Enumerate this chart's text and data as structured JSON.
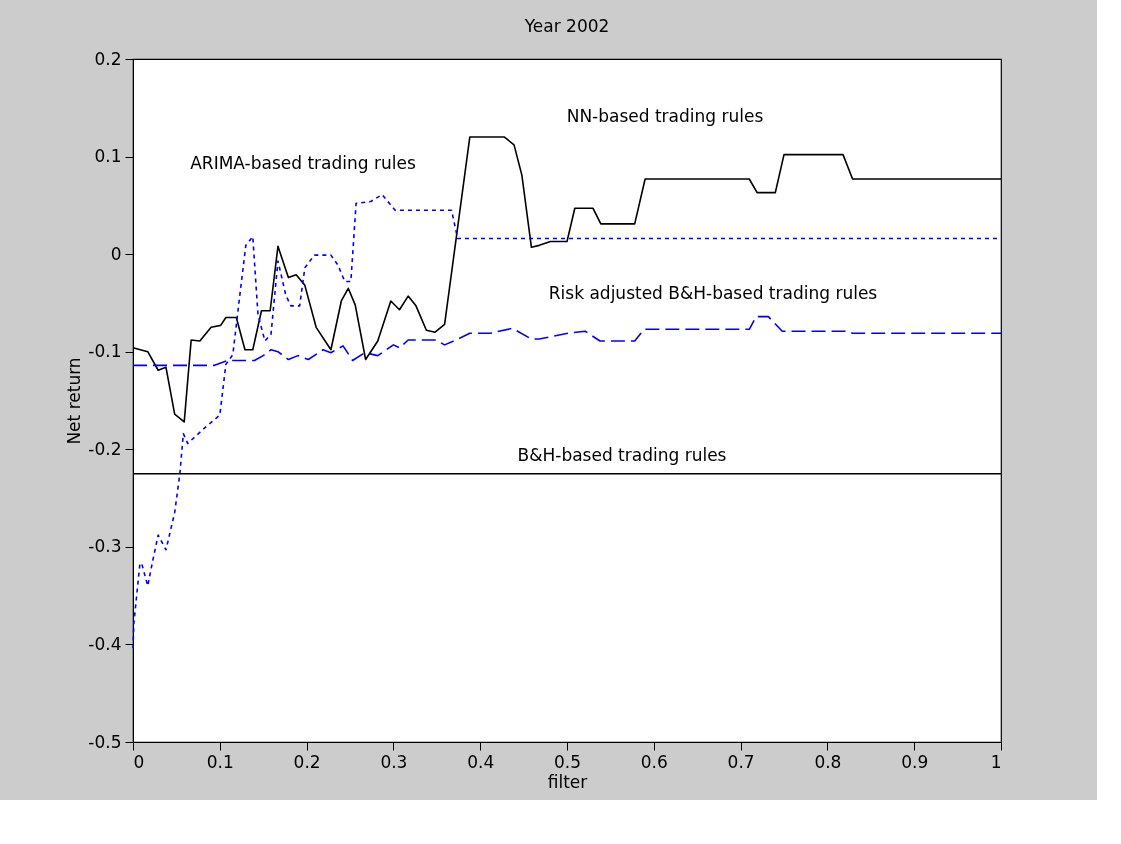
{
  "chart_data": {
    "type": "line",
    "title": "Year 2002",
    "xlabel": "filter",
    "ylabel": "Net return",
    "xlim": [
      0,
      1
    ],
    "xticks": [
      0,
      0.1,
      0.2,
      0.3,
      0.4,
      0.5,
      0.6,
      0.7,
      0.8,
      0.9,
      1
    ],
    "ylim": [
      -0.5,
      0.2
    ],
    "yticks": [
      -0.5,
      -0.4,
      -0.3,
      -0.2,
      -0.1,
      0,
      0.1,
      0.2
    ],
    "grid": false,
    "series": [
      {
        "name": "NN-based trading rules",
        "color": "#000000",
        "line_style": "solid",
        "x": [
          0,
          0.017,
          0.029,
          0.038,
          0.048,
          0.059,
          0.067,
          0.077,
          0.09,
          0.101,
          0.107,
          0.119,
          0.129,
          0.138,
          0.148,
          0.158,
          0.167,
          0.179,
          0.188,
          0.198,
          0.211,
          0.228,
          0.24,
          0.248,
          0.256,
          0.268,
          0.282,
          0.297,
          0.307,
          0.317,
          0.326,
          0.338,
          0.348,
          0.359,
          0.388,
          0.428,
          0.439,
          0.448,
          0.459,
          0.468,
          0.481,
          0.5,
          0.509,
          0.53,
          0.539,
          0.578,
          0.59,
          0.71,
          0.719,
          0.74,
          0.75,
          0.818,
          0.829,
          1
        ],
        "values": [
          -0.096,
          -0.1,
          -0.119,
          -0.116,
          -0.164,
          -0.172,
          -0.088,
          -0.089,
          -0.075,
          -0.073,
          -0.065,
          -0.065,
          -0.098,
          -0.098,
          -0.058,
          -0.058,
          0.008,
          -0.024,
          -0.021,
          -0.032,
          -0.075,
          -0.098,
          -0.048,
          -0.035,
          -0.052,
          -0.108,
          -0.089,
          -0.048,
          -0.057,
          -0.043,
          -0.053,
          -0.078,
          -0.08,
          -0.072,
          0.12,
          0.12,
          0.112,
          0.081,
          0.007,
          0.009,
          0.013,
          0.013,
          0.047,
          0.047,
          0.031,
          0.031,
          0.077,
          0.077,
          0.063,
          0.063,
          0.102,
          0.102,
          0.077,
          0.077
        ]
      },
      {
        "name": "ARIMA-based trading rules",
        "color": "#0000ff",
        "line_style": "dotted",
        "x": [
          0,
          0.001,
          0.008,
          0.01,
          0.017,
          0.023,
          0.029,
          0.038,
          0.048,
          0.054,
          0.058,
          0.063,
          0.084,
          0.1,
          0.107,
          0.115,
          0.124,
          0.13,
          0.138,
          0.144,
          0.152,
          0.159,
          0.167,
          0.176,
          0.182,
          0.192,
          0.198,
          0.209,
          0.228,
          0.236,
          0.244,
          0.251,
          0.257,
          0.274,
          0.287,
          0.302,
          0.367,
          0.374,
          1
        ],
        "values": [
          -0.404,
          -0.378,
          -0.317,
          -0.317,
          -0.34,
          -0.313,
          -0.288,
          -0.303,
          -0.265,
          -0.225,
          -0.184,
          -0.194,
          -0.177,
          -0.165,
          -0.113,
          -0.103,
          -0.035,
          0.009,
          0.018,
          -0.062,
          -0.089,
          -0.082,
          -0.007,
          -0.042,
          -0.053,
          -0.053,
          -0.014,
          -0.001,
          -0.001,
          -0.011,
          -0.028,
          -0.028,
          0.052,
          0.054,
          0.061,
          0.045,
          0.045,
          0.016,
          0.016
        ]
      },
      {
        "name": "Risk adjusted B&H-based trading rules",
        "color": "#0000ff",
        "line_style": "dashed",
        "x": [
          0,
          0.094,
          0.109,
          0.14,
          0.15,
          0.159,
          0.167,
          0.179,
          0.19,
          0.202,
          0.219,
          0.228,
          0.242,
          0.253,
          0.267,
          0.282,
          0.3,
          0.307,
          0.317,
          0.349,
          0.359,
          0.372,
          0.388,
          0.412,
          0.437,
          0.459,
          0.468,
          0.501,
          0.521,
          0.538,
          0.578,
          0.589,
          0.71,
          0.718,
          0.732,
          0.748,
          0.823,
          0.829,
          1
        ],
        "values": [
          -0.114,
          -0.114,
          -0.109,
          -0.109,
          -0.104,
          -0.098,
          -0.1,
          -0.108,
          -0.104,
          -0.108,
          -0.098,
          -0.101,
          -0.094,
          -0.109,
          -0.101,
          -0.104,
          -0.093,
          -0.096,
          -0.088,
          -0.088,
          -0.093,
          -0.088,
          -0.081,
          -0.081,
          -0.076,
          -0.087,
          -0.087,
          -0.081,
          -0.079,
          -0.089,
          -0.089,
          -0.077,
          -0.077,
          -0.064,
          -0.064,
          -0.079,
          -0.079,
          -0.081,
          -0.081
        ]
      }
    ],
    "ref_lines": [
      {
        "axis": "y",
        "value": -0.225,
        "label": "B&H-based trading rules",
        "color": "#000000",
        "line_style": "solid"
      }
    ]
  }
}
